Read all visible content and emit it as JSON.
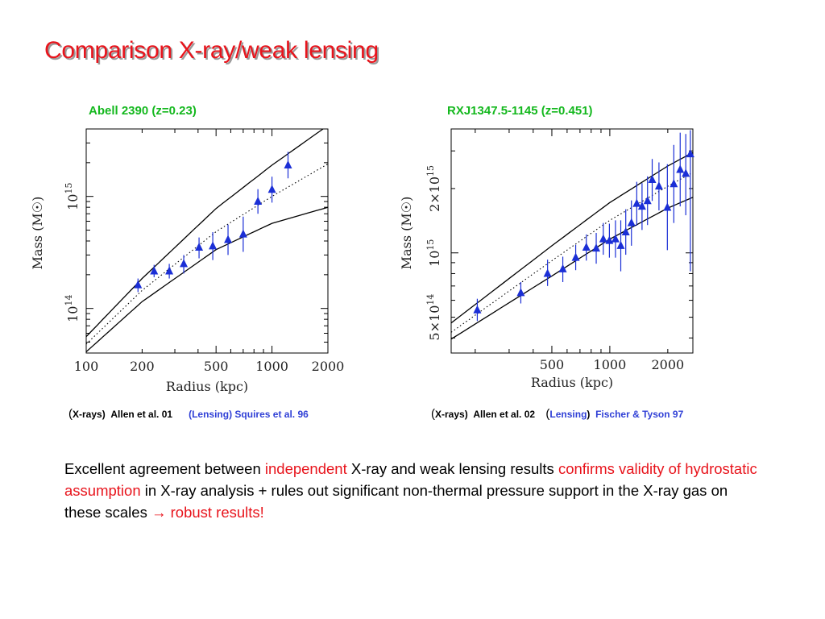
{
  "slide": {
    "title": "Comparison X-ray/weak lensing",
    "body": [
      {
        "text": "Excellent agreement between ",
        "color": "#000000"
      },
      {
        "text": "independent",
        "color": "#e8141c"
      },
      {
        "text": " X-ray and weak lensing results ",
        "color": "#000000"
      },
      {
        "text": "confirms validity of hydrostatic assumption",
        "color": "#e8141c"
      },
      {
        "text": " in X-ray analysis + rules out significant non-thermal pressure support in the X-ray gas on these scales ",
        "color": "#000000"
      },
      {
        "text": "→",
        "color": "#e8141c"
      },
      {
        "text": " robust results!",
        "color": "#e8141c"
      }
    ]
  },
  "colors": {
    "title": "#e8141c",
    "panel_title": "#14b81e",
    "points": "#1b2fd6",
    "body_highlight": "#e8141c"
  },
  "chart_data": [
    {
      "type": "scatter",
      "title": "Abell 2390 (z=0.23)",
      "xlabel": "Radius (kpc)",
      "ylabel": "Mass (M☉)",
      "xscale": "log",
      "yscale": "log",
      "xlim": [
        100,
        2000
      ],
      "ylim": [
        40000000000000.0,
        4000000000000000.0
      ],
      "xticklabels": [
        {
          "v": 100,
          "label": "100"
        },
        {
          "v": 200,
          "label": "200"
        },
        {
          "v": 500,
          "label": "500"
        },
        {
          "v": 1000,
          "label": "1000"
        },
        {
          "v": 2000,
          "label": "2000"
        }
      ],
      "yticklabels": [
        {
          "v": 100000000000000.0,
          "base": "10",
          "exp": "14"
        },
        {
          "v": 1000000000000000.0,
          "base": "10",
          "exp": "15"
        }
      ],
      "points": [
        {
          "x": 190,
          "y": 162000000000000.0,
          "lo": 140000000000000.0,
          "hi": 185000000000000.0
        },
        {
          "x": 232,
          "y": 215000000000000.0,
          "lo": 190000000000000.0,
          "hi": 245000000000000.0
        },
        {
          "x": 280,
          "y": 215000000000000.0,
          "lo": 185000000000000.0,
          "hi": 250000000000000.0
        },
        {
          "x": 335,
          "y": 250000000000000.0,
          "lo": 205000000000000.0,
          "hi": 300000000000000.0
        },
        {
          "x": 405,
          "y": 350000000000000.0,
          "lo": 280000000000000.0,
          "hi": 430000000000000.0
        },
        {
          "x": 480,
          "y": 360000000000000.0,
          "lo": 270000000000000.0,
          "hi": 480000000000000.0
        },
        {
          "x": 580,
          "y": 410000000000000.0,
          "lo": 300000000000000.0,
          "hi": 560000000000000.0
        },
        {
          "x": 700,
          "y": 460000000000000.0,
          "lo": 320000000000000.0,
          "hi": 660000000000000.0
        },
        {
          "x": 840,
          "y": 900000000000000.0,
          "lo": 700000000000000.0,
          "hi": 1160000000000000.0
        },
        {
          "x": 1000,
          "y": 1150000000000000.0,
          "lo": 880000000000000.0,
          "hi": 1500000000000000.0
        },
        {
          "x": 1220,
          "y": 1900000000000000.0,
          "lo": 1450000000000000.0,
          "hi": 2500000000000000.0
        }
      ],
      "curves": [
        {
          "style": "solid",
          "points": [
            [
              100,
              56000000000000.0
            ],
            [
              200,
              185000000000000.0
            ],
            [
              500,
              780000000000000.0
            ],
            [
              1000,
              1900000000000000.0
            ],
            [
              2000,
              4300000000000000.0
            ]
          ]
        },
        {
          "style": "dotted",
          "points": [
            [
              100,
              48000000000000.0
            ],
            [
              200,
              145000000000000.0
            ],
            [
              500,
              485000000000000.0
            ],
            [
              1000,
              1000000000000000.0
            ],
            [
              2000,
              1950000000000000.0
            ]
          ]
        },
        {
          "style": "solid",
          "points": [
            [
              100,
              41000000000000.0
            ],
            [
              200,
              115000000000000.0
            ],
            [
              500,
              335000000000000.0
            ],
            [
              1000,
              575000000000000.0
            ],
            [
              2000,
              800000000000000.0
            ]
          ]
        }
      ],
      "caption": {
        "paren": "(",
        "xray_label": "X-rays)",
        "xray_ref": "Allen et al.  01",
        "lens_label": "(Lensing)",
        "lens_ref": "Squires et al. 96"
      }
    },
    {
      "type": "scatter",
      "title": "RXJ1347.5-1145 (z=0.451)",
      "xlabel": "Radius (kpc)",
      "ylabel": "Mass (M☉)",
      "xscale": "log",
      "yscale": "log",
      "xlim": [
        150,
        2700
      ],
      "ylim": [
        340000000000000.0,
        3800000000000000.0
      ],
      "xticklabels": [
        {
          "v": 500,
          "label": "500"
        },
        {
          "v": 1000,
          "label": "1000"
        },
        {
          "v": 2000,
          "label": "2000"
        }
      ],
      "yticklabels": [
        {
          "v": 500000000000000.0,
          "base": "5×10",
          "exp": "14"
        },
        {
          "v": 1000000000000000.0,
          "base": "10",
          "exp": "15"
        },
        {
          "v": 2000000000000000.0,
          "base": "2×10",
          "exp": "15"
        }
      ],
      "points": [
        {
          "x": 205,
          "y": 540000000000000.0,
          "lo": 480000000000000.0,
          "hi": 610000000000000.0
        },
        {
          "x": 345,
          "y": 650000000000000.0,
          "lo": 580000000000000.0,
          "hi": 730000000000000.0
        },
        {
          "x": 475,
          "y": 800000000000000.0,
          "lo": 700000000000000.0,
          "hi": 930000000000000.0
        },
        {
          "x": 570,
          "y": 840000000000000.0,
          "lo": 730000000000000.0,
          "hi": 960000000000000.0
        },
        {
          "x": 665,
          "y": 950000000000000.0,
          "lo": 830000000000000.0,
          "hi": 1090000000000000.0
        },
        {
          "x": 755,
          "y": 1060000000000000.0,
          "lo": 920000000000000.0,
          "hi": 1220000000000000.0
        },
        {
          "x": 850,
          "y": 1050000000000000.0,
          "lo": 890000000000000.0,
          "hi": 1240000000000000.0
        },
        {
          "x": 925,
          "y": 1160000000000000.0,
          "lo": 980000000000000.0,
          "hi": 1380000000000000.0
        },
        {
          "x": 995,
          "y": 1140000000000000.0,
          "lo": 950000000000000.0,
          "hi": 1370000000000000.0
        },
        {
          "x": 1070,
          "y": 1160000000000000.0,
          "lo": 950000000000000.0,
          "hi": 1420000000000000.0
        },
        {
          "x": 1140,
          "y": 1080000000000000.0,
          "lo": 820000000000000.0,
          "hi": 1420000000000000.0
        },
        {
          "x": 1210,
          "y": 1250000000000000.0,
          "lo": 980000000000000.0,
          "hi": 1600000000000000.0
        },
        {
          "x": 1295,
          "y": 1380000000000000.0,
          "lo": 1080000000000000.0,
          "hi": 1760000000000000.0
        },
        {
          "x": 1380,
          "y": 1700000000000000.0,
          "lo": 1340000000000000.0,
          "hi": 2150000000000000.0
        },
        {
          "x": 1470,
          "y": 1650000000000000.0,
          "lo": 1280000000000000.0,
          "hi": 2120000000000000.0
        },
        {
          "x": 1570,
          "y": 1750000000000000.0,
          "lo": 1350000000000000.0,
          "hi": 2280000000000000.0
        },
        {
          "x": 1660,
          "y": 2200000000000000.0,
          "lo": 1750000000000000.0,
          "hi": 2750000000000000.0
        },
        {
          "x": 1800,
          "y": 2050000000000000.0,
          "lo": 1580000000000000.0,
          "hi": 2650000000000000.0
        },
        {
          "x": 1990,
          "y": 1630000000000000.0,
          "lo": 1030000000000000.0,
          "hi": 2600000000000000.0
        },
        {
          "x": 2150,
          "y": 2100000000000000.0,
          "lo": 1380000000000000.0,
          "hi": 3200000000000000.0
        },
        {
          "x": 2320,
          "y": 2450000000000000.0,
          "lo": 1650000000000000.0,
          "hi": 3650000000000000.0
        },
        {
          "x": 2480,
          "y": 2350000000000000.0,
          "lo": 1500000000000000.0,
          "hi": 3600000000000000.0
        },
        {
          "x": 2620,
          "y": 2900000000000000.0,
          "lo": 820000000000000.0,
          "hi": 3750000000000000.0
        }
      ],
      "curves": [
        {
          "style": "solid",
          "points": [
            [
              150,
              470000000000000.0
            ],
            [
              500,
              1080000000000000.0
            ],
            [
              1000,
              1720000000000000.0
            ],
            [
              2000,
              2550000000000000.0
            ],
            [
              2700,
              2950000000000000.0
            ]
          ]
        },
        {
          "style": "dotted",
          "points": [
            [
              150,
              425000000000000.0
            ],
            [
              500,
              920000000000000.0
            ],
            [
              1000,
              1420000000000000.0
            ],
            [
              2000,
              2050000000000000.0
            ],
            [
              2700,
              2380000000000000.0
            ]
          ]
        },
        {
          "style": "solid",
          "points": [
            [
              150,
              395000000000000.0
            ],
            [
              500,
              780000000000000.0
            ],
            [
              1000,
              1160000000000000.0
            ],
            [
              2000,
              1620000000000000.0
            ],
            [
              2700,
              1820000000000000.0
            ]
          ]
        }
      ],
      "caption": {
        "paren": "(",
        "xray_label": "X-rays)",
        "xray_ref": "Allen et al.  02",
        "lens_open": "(",
        "lens_label": "Lensing",
        "lens_close": ")",
        "lens_ref": "Fischer & Tyson  97"
      }
    }
  ]
}
